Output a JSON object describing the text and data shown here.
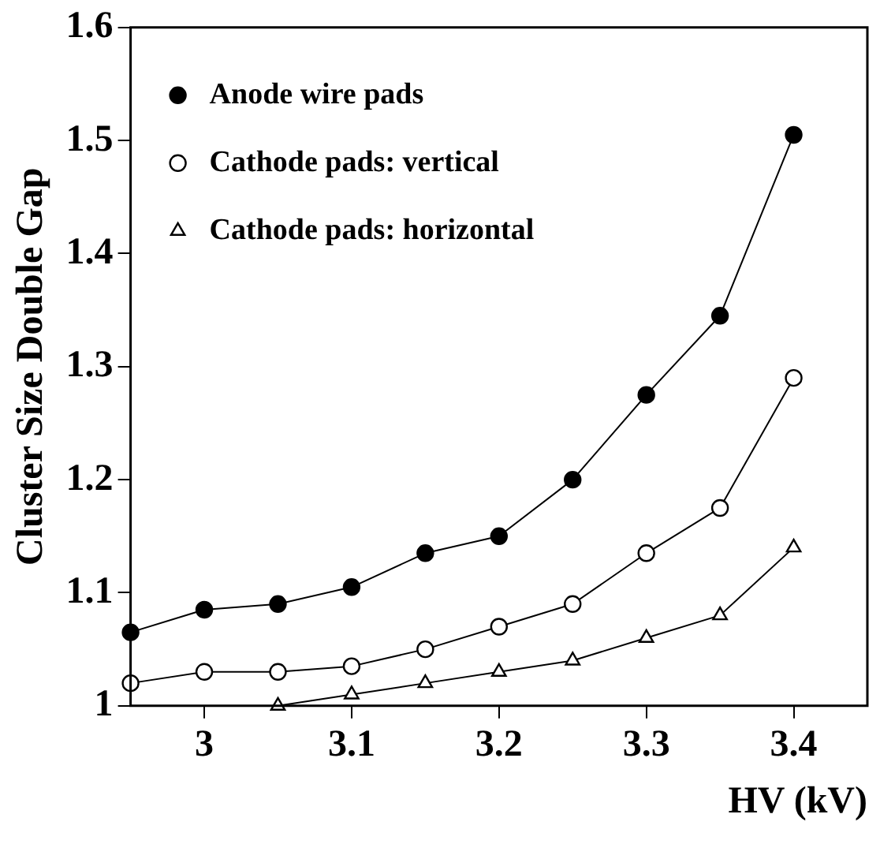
{
  "chart_data": {
    "type": "line",
    "xlabel": "HV (kV)",
    "ylabel": "Cluster Size Double Gap",
    "xlim": [
      2.95,
      3.45
    ],
    "xticks": [
      3,
      3.1,
      3.2,
      3.3,
      3.4
    ],
    "ylim": [
      1,
      1.6
    ],
    "yticks": [
      1,
      1.1,
      1.2,
      1.3,
      1.4,
      1.5,
      1.6
    ],
    "grid": false,
    "legend": "top left",
    "series": [
      {
        "name": "Anode wire pads",
        "color": "#000000",
        "marker": "circle",
        "x": [
          2.95,
          3,
          3.05,
          3.1,
          3.15,
          3.2,
          3.25,
          3.3,
          3.35,
          3.4
        ],
        "values": [
          1.065,
          1.085,
          1.09,
          1.105,
          1.135,
          1.15,
          1.2,
          1.275,
          1.345,
          1.505
        ]
      },
      {
        "name": "Cathode pads: vertical",
        "color": "#000000",
        "marker": "circle",
        "x": [
          2.95,
          3,
          3.05,
          3.1,
          3.15,
          3.2,
          3.25,
          3.3,
          3.35,
          3.4
        ],
        "values": [
          1.02,
          1.03,
          1.03,
          1.035,
          1.05,
          1.07,
          1.09,
          1.135,
          1.175,
          1.29
        ]
      },
      {
        "name": "Cathode pads: horizontal",
        "color": "#000000",
        "marker": "triangle",
        "x": [
          3.05,
          3.1,
          3.15,
          3.2,
          3.25,
          3.3,
          3.35,
          3.4
        ],
        "values": [
          1.0,
          1.01,
          1.02,
          1.03,
          1.04,
          1.06,
          1.08,
          1.14
        ]
      }
    ]
  }
}
